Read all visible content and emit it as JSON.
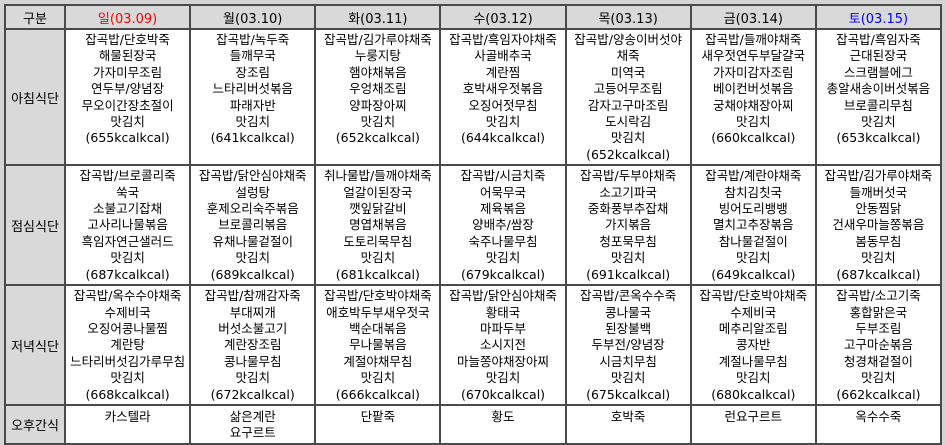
{
  "table": {
    "corner_label": "구분",
    "columns": [
      {
        "key": "sun",
        "label": "일(03.09)",
        "color": "#ff0000"
      },
      {
        "key": "mon",
        "label": "월(03.10)",
        "color": "#000000"
      },
      {
        "key": "tue",
        "label": "화(03.11)",
        "color": "#000000"
      },
      {
        "key": "wed",
        "label": "수(03.12)",
        "color": "#000000"
      },
      {
        "key": "thu",
        "label": "목(03.13)",
        "color": "#000000"
      },
      {
        "key": "fri",
        "label": "금(03.14)",
        "color": "#000000"
      },
      {
        "key": "sat",
        "label": "토(03.15)",
        "color": "#0000ff"
      }
    ],
    "rows": [
      {
        "key": "breakfast",
        "label": "아침식단",
        "cells": [
          [
            "잡곡밥/단호박죽",
            "해물된장국",
            "가자미무조림",
            "연두부/양념장",
            "무오이간장초절이",
            "맛김치",
            "(655kcalkcal)"
          ],
          [
            "잡곡밥/녹두죽",
            "들깨무국",
            "장조림",
            "느타리버섯볶음",
            "파래자반",
            "맛김치",
            "(641kcalkcal)"
          ],
          [
            "잡곡밥/김가루야채죽",
            "누룽지탕",
            "햄야채볶음",
            "우엉채조림",
            "양파장아찌",
            "맛김치",
            "(652kcalkcal)"
          ],
          [
            "잡곡밥/흑임자야채죽",
            "사골배추국",
            "계란찜",
            "호박새우젓볶음",
            "오징어젓무침",
            "맛김치",
            "(644kcalkcal)"
          ],
          [
            "잡곡밥/양송이버섯야채죽",
            "미역국",
            "고등어무조림",
            "감자고구마조림",
            "도시락김",
            "맛김치",
            "(652kcalkcal)"
          ],
          [
            "잡곡밥/들깨야채죽",
            "새우젓연두부달걀국",
            "가자미감자조림",
            "베이컨버섯볶음",
            "궁채야채장아찌",
            "맛김치",
            "(660kcalkcal)"
          ],
          [
            "잡곡밥/흑임자죽",
            "근대된장국",
            "스크램블에그",
            "총알새송이버섯볶음",
            "브로콜리무침",
            "맛김치",
            "(653kcalkcal)"
          ]
        ]
      },
      {
        "key": "lunch",
        "label": "점심식단",
        "cells": [
          [
            "잡곡밥/브로콜리죽",
            "쑥국",
            "소불고기잡채",
            "고사리나물볶음",
            "흑임자연근샐러드",
            "맛김치",
            "(687kcalkcal)"
          ],
          [
            "잡곡밥/닭안심야채죽",
            "설렁탕",
            "훈제오리숙주볶음",
            "브로콜리볶음",
            "유채나물겉절이",
            "맛김치",
            "(689kcalkcal)"
          ],
          [
            "취나물밥/들깨야채죽",
            "얼갈이된장국",
            "깻잎닭갈비",
            "명엽채볶음",
            "도토리묵무침",
            "맛김치",
            "(681kcalkcal)"
          ],
          [
            "잡곡밥/시금치죽",
            "어묵무국",
            "제육볶음",
            "양배추/쌈장",
            "숙주나물무침",
            "맛김치",
            "(679kcalkcal)"
          ],
          [
            "잡곡밥/두부야채죽",
            "소고기파국",
            "중화풍부추잡채",
            "가지볶음",
            "청포묵무침",
            "맛김치",
            "(691kcalkcal)"
          ],
          [
            "잡곡밥/계란야채죽",
            "참치김칫국",
            "빙어도리뱅뱅",
            "멸치고추장볶음",
            "참나물겉절이",
            "맛김치",
            "(649kcalkcal)"
          ],
          [
            "잡곡밥/김가루야채죽",
            "들깨버섯국",
            "안동찜닭",
            "건새우마늘쫑볶음",
            "봄동무침",
            "맛김치",
            "(687kcalkcal)"
          ]
        ]
      },
      {
        "key": "dinner",
        "label": "저녁식단",
        "cells": [
          [
            "잡곡밥/옥수수야채죽",
            "수제비국",
            "오징어콩나물찜",
            "계란탕",
            "느타리버섯김가루무침",
            "맛김치",
            "(668kcalkcal)"
          ],
          [
            "잡곡밥/참깨감자죽",
            "부대찌개",
            "버섯소불고기",
            "계란장조림",
            "콩나물무침",
            "맛김치",
            "(672kcalkcal)"
          ],
          [
            "잡곡밥/단호박야채죽",
            "애호박두부새우젓국",
            "백순대볶음",
            "무나물볶음",
            "계절야채무침",
            "맛김치",
            "(666kcalkcal)"
          ],
          [
            "잡곡밥/닭안심야채죽",
            "황태국",
            "마파두부",
            "소시지전",
            "마늘쫑야채장아찌",
            "맛김치",
            "(670kcalkcal)"
          ],
          [
            "잡곡밥/콘옥수수죽",
            "콩나물국",
            "된장불백",
            "두부전/양념장",
            "시금치무침",
            "맛김치",
            "(675kcalkcal)"
          ],
          [
            "잡곡밥/단호박야채죽",
            "수제비국",
            "메추리알조림",
            "콩자반",
            "계절나물무침",
            "맛김치",
            "(680kcalkcal)"
          ],
          [
            "잡곡밥/소고기죽",
            "홍합맑은국",
            "두부조림",
            "고구마순볶음",
            "청경채겉절이",
            "맛김치",
            "(662kcalkcal)"
          ]
        ]
      },
      {
        "key": "snack",
        "label": "오후간식",
        "cells": [
          [
            "카스텔라"
          ],
          [
            "삶은계란",
            "요구르트"
          ],
          [
            "단팥죽"
          ],
          [
            "황도"
          ],
          [
            "호박죽"
          ],
          [
            "런요구르트"
          ],
          [
            "옥수수죽"
          ]
        ]
      }
    ]
  }
}
